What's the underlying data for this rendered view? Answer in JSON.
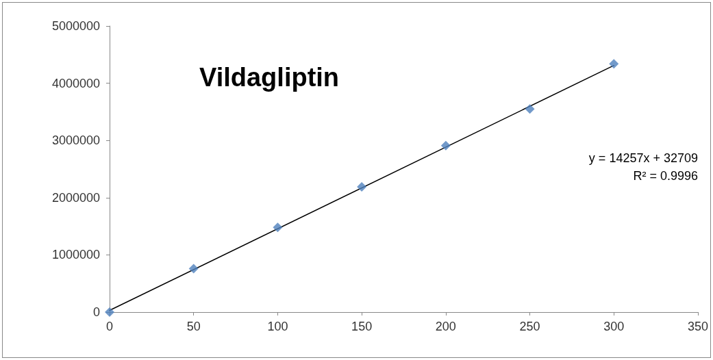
{
  "chart_data": {
    "type": "scatter",
    "title": "Vildagliptin",
    "x": [
      0,
      50,
      100,
      150,
      200,
      250,
      300
    ],
    "series": [
      {
        "color": "#4f81bd",
        "marker": "diamond",
        "values": [
          0,
          760000,
          1480000,
          2190000,
          2910000,
          3550000,
          4340000
        ]
      },
      {
        "type": "line",
        "color": "#000000",
        "marker": "none",
        "x": [
          0,
          300
        ],
        "values": [
          30000,
          4310000
        ]
      }
    ],
    "annotations": [
      "y = 14257x + 32709",
      "R² = 0.9996"
    ],
    "xlim": [
      0,
      350
    ],
    "xticks": [
      0,
      50,
      100,
      150,
      200,
      250,
      300,
      350
    ],
    "ylim": [
      0,
      5000000
    ],
    "yticks": [
      0,
      1000000,
      2000000,
      3000000,
      4000000,
      5000000
    ],
    "grid": false
  }
}
